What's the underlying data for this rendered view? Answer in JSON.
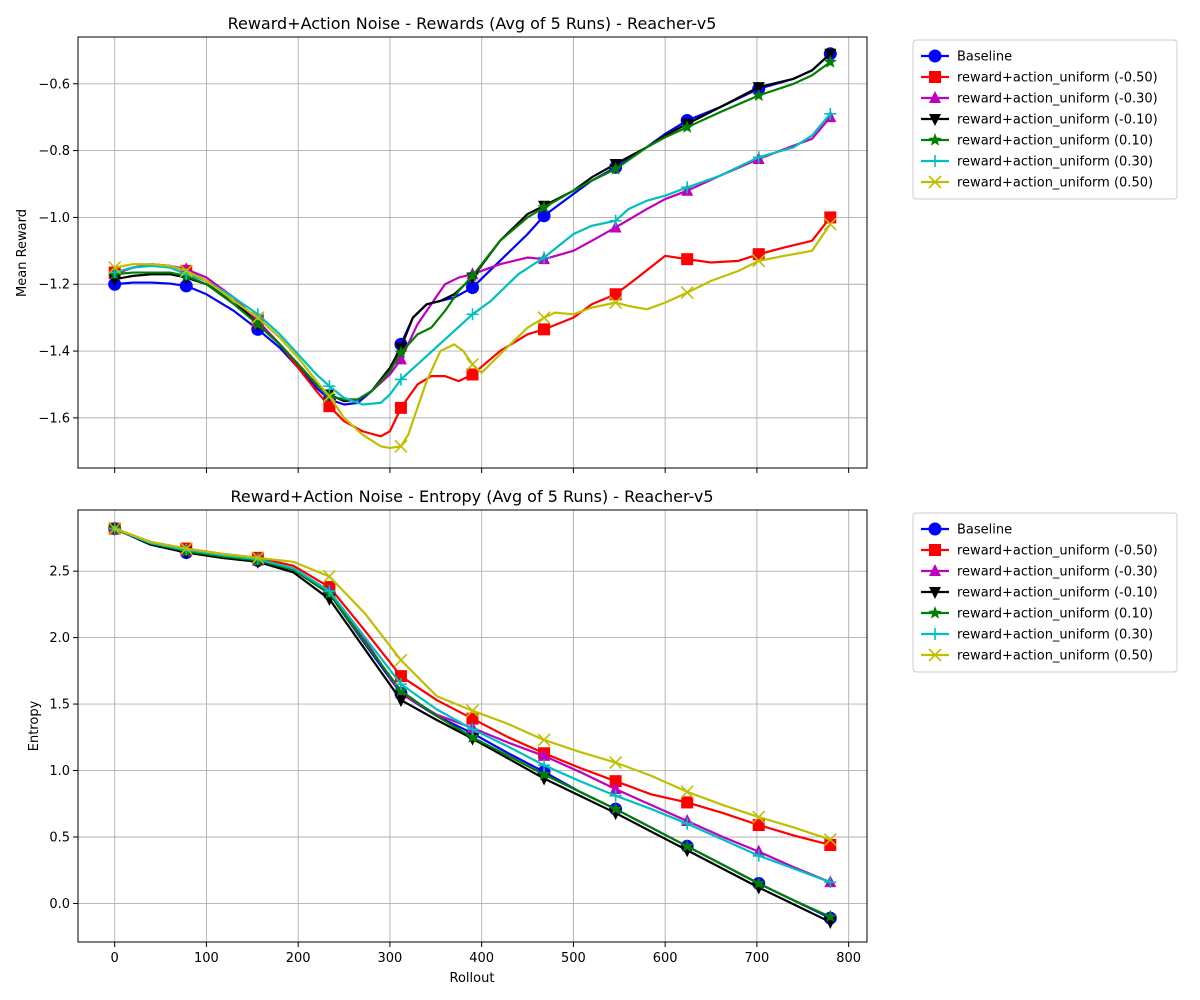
{
  "chart_data": [
    {
      "type": "line",
      "title": "Reward+Action Noise - Rewards (Avg of 5 Runs) - Reacher-v5",
      "xlabel": "",
      "ylabel": "Mean Reward",
      "xlim": [
        -40,
        820
      ],
      "ylim": [
        -1.75,
        -0.46
      ],
      "xticks": [
        0,
        100,
        200,
        300,
        400,
        500,
        600,
        700,
        800
      ],
      "xtick_labels_shown": false,
      "yticks": [
        -1.6,
        -1.4,
        -1.2,
        -1.0,
        -0.8,
        -0.6
      ],
      "ytick_labels": [
        "−1.6",
        "−1.4",
        "−1.2",
        "−1.0",
        "−0.8",
        "−0.6"
      ],
      "grid": true,
      "legend_position": "outside-top-right",
      "series": [
        {
          "name": "Baseline",
          "color": "#0000ff",
          "marker": "circle",
          "x": [
            0,
            20,
            40,
            60,
            78,
            100,
            130,
            156,
            180,
            200,
            220,
            234,
            250,
            265,
            280,
            300,
            312,
            325,
            340,
            355,
            370,
            390,
            420,
            450,
            468,
            500,
            520,
            546,
            580,
            600,
            624,
            660,
            702,
            740,
            760,
            780
          ],
          "y": [
            -1.2,
            -1.195,
            -1.195,
            -1.198,
            -1.205,
            -1.23,
            -1.28,
            -1.335,
            -1.39,
            -1.45,
            -1.51,
            -1.545,
            -1.56,
            -1.555,
            -1.52,
            -1.46,
            -1.38,
            -1.3,
            -1.26,
            -1.25,
            -1.24,
            -1.21,
            -1.13,
            -1.05,
            -0.995,
            -0.93,
            -0.89,
            -0.85,
            -0.79,
            -0.75,
            -0.71,
            -0.67,
            -0.615,
            -0.585,
            -0.56,
            -0.51
          ]
        },
        {
          "name": "reward+action_uniform (-0.50)",
          "color": "#ff0000",
          "marker": "square",
          "x": [
            0,
            20,
            40,
            60,
            78,
            100,
            130,
            156,
            180,
            200,
            220,
            234,
            250,
            270,
            290,
            300,
            312,
            330,
            345,
            360,
            375,
            390,
            420,
            450,
            468,
            500,
            520,
            546,
            570,
            600,
            624,
            650,
            680,
            702,
            730,
            760,
            780
          ],
          "y": [
            -1.165,
            -1.15,
            -1.14,
            -1.145,
            -1.16,
            -1.19,
            -1.25,
            -1.31,
            -1.38,
            -1.45,
            -1.52,
            -1.565,
            -1.61,
            -1.64,
            -1.655,
            -1.64,
            -1.57,
            -1.5,
            -1.475,
            -1.475,
            -1.49,
            -1.47,
            -1.4,
            -1.35,
            -1.335,
            -1.3,
            -1.26,
            -1.23,
            -1.18,
            -1.115,
            -1.125,
            -1.135,
            -1.13,
            -1.11,
            -1.09,
            -1.07,
            -1.0
          ]
        },
        {
          "name": "reward+action_uniform (-0.30)",
          "color": "#bf00bf",
          "marker": "triangle-up",
          "x": [
            0,
            20,
            40,
            60,
            78,
            100,
            130,
            156,
            180,
            200,
            220,
            234,
            250,
            265,
            280,
            300,
            312,
            330,
            345,
            360,
            375,
            390,
            420,
            450,
            468,
            500,
            520,
            546,
            580,
            600,
            624,
            660,
            702,
            740,
            760,
            780
          ],
          "y": [
            -1.17,
            -1.15,
            -1.14,
            -1.145,
            -1.155,
            -1.18,
            -1.24,
            -1.31,
            -1.38,
            -1.44,
            -1.5,
            -1.535,
            -1.545,
            -1.545,
            -1.52,
            -1.47,
            -1.425,
            -1.32,
            -1.26,
            -1.2,
            -1.18,
            -1.17,
            -1.14,
            -1.12,
            -1.125,
            -1.1,
            -1.07,
            -1.03,
            -0.975,
            -0.945,
            -0.92,
            -0.875,
            -0.825,
            -0.785,
            -0.765,
            -0.7
          ]
        },
        {
          "name": "reward+action_uniform (-0.10)",
          "color": "#000000",
          "marker": "triangle-down",
          "x": [
            0,
            20,
            40,
            60,
            78,
            100,
            130,
            156,
            180,
            200,
            220,
            234,
            250,
            265,
            280,
            300,
            312,
            325,
            340,
            355,
            370,
            390,
            420,
            450,
            468,
            500,
            520,
            546,
            580,
            600,
            624,
            660,
            702,
            740,
            760,
            780
          ],
          "y": [
            -1.185,
            -1.175,
            -1.17,
            -1.17,
            -1.18,
            -1.2,
            -1.25,
            -1.32,
            -1.38,
            -1.44,
            -1.5,
            -1.53,
            -1.55,
            -1.545,
            -1.52,
            -1.45,
            -1.39,
            -1.3,
            -1.26,
            -1.25,
            -1.23,
            -1.18,
            -1.07,
            -0.99,
            -0.965,
            -0.92,
            -0.88,
            -0.84,
            -0.79,
            -0.755,
            -0.72,
            -0.67,
            -0.61,
            -0.585,
            -0.56,
            -0.51
          ]
        },
        {
          "name": "reward+action_uniform (0.10)",
          "color": "#008000",
          "marker": "star",
          "x": [
            0,
            20,
            40,
            60,
            78,
            100,
            130,
            156,
            180,
            200,
            220,
            234,
            250,
            265,
            280,
            300,
            312,
            330,
            345,
            360,
            375,
            390,
            420,
            450,
            468,
            500,
            520,
            546,
            580,
            600,
            624,
            660,
            702,
            740,
            760,
            780
          ],
          "y": [
            -1.17,
            -1.165,
            -1.165,
            -1.165,
            -1.175,
            -1.2,
            -1.26,
            -1.32,
            -1.38,
            -1.44,
            -1.5,
            -1.535,
            -1.545,
            -1.545,
            -1.52,
            -1.46,
            -1.405,
            -1.35,
            -1.33,
            -1.28,
            -1.22,
            -1.175,
            -1.07,
            -1.0,
            -0.97,
            -0.92,
            -0.89,
            -0.855,
            -0.79,
            -0.76,
            -0.73,
            -0.685,
            -0.635,
            -0.6,
            -0.575,
            -0.535
          ]
        },
        {
          "name": "reward+action_uniform (0.30)",
          "color": "#00bfbf",
          "marker": "plus",
          "x": [
            0,
            20,
            40,
            60,
            78,
            100,
            130,
            156,
            180,
            200,
            220,
            234,
            250,
            270,
            290,
            300,
            312,
            330,
            350,
            370,
            390,
            410,
            440,
            468,
            500,
            520,
            546,
            560,
            580,
            600,
            624,
            660,
            702,
            740,
            760,
            780
          ],
          "y": [
            -1.165,
            -1.15,
            -1.145,
            -1.15,
            -1.17,
            -1.19,
            -1.24,
            -1.29,
            -1.35,
            -1.41,
            -1.47,
            -1.505,
            -1.54,
            -1.56,
            -1.555,
            -1.53,
            -1.485,
            -1.44,
            -1.39,
            -1.34,
            -1.29,
            -1.25,
            -1.17,
            -1.12,
            -1.05,
            -1.025,
            -1.01,
            -0.975,
            -0.95,
            -0.935,
            -0.91,
            -0.875,
            -0.82,
            -0.79,
            -0.755,
            -0.69
          ]
        },
        {
          "name": "reward+action_uniform (0.50)",
          "color": "#bfbf00",
          "marker": "x",
          "x": [
            0,
            20,
            40,
            60,
            78,
            100,
            130,
            156,
            180,
            200,
            220,
            234,
            250,
            270,
            290,
            300,
            312,
            320,
            340,
            355,
            370,
            380,
            390,
            400,
            420,
            450,
            468,
            480,
            500,
            520,
            546,
            560,
            580,
            600,
            624,
            650,
            680,
            702,
            730,
            760,
            780
          ],
          "y": [
            -1.15,
            -1.14,
            -1.14,
            -1.145,
            -1.16,
            -1.19,
            -1.25,
            -1.3,
            -1.36,
            -1.42,
            -1.49,
            -1.535,
            -1.6,
            -1.65,
            -1.685,
            -1.69,
            -1.685,
            -1.65,
            -1.49,
            -1.4,
            -1.38,
            -1.4,
            -1.44,
            -1.465,
            -1.41,
            -1.33,
            -1.3,
            -1.285,
            -1.29,
            -1.27,
            -1.255,
            -1.265,
            -1.275,
            -1.255,
            -1.225,
            -1.19,
            -1.16,
            -1.13,
            -1.115,
            -1.1,
            -1.02
          ]
        }
      ]
    },
    {
      "type": "line",
      "title": "Reward+Action Noise - Entropy (Avg of 5 Runs) - Reacher-v5",
      "xlabel": "Rollout",
      "ylabel": "Entropy",
      "xlim": [
        -40,
        820
      ],
      "ylim": [
        -0.29,
        2.96
      ],
      "xticks": [
        0,
        100,
        200,
        300,
        400,
        500,
        600,
        700,
        800
      ],
      "xtick_labels": [
        "0",
        "100",
        "200",
        "300",
        "400",
        "500",
        "600",
        "700",
        "800"
      ],
      "yticks": [
        0.0,
        0.5,
        1.0,
        1.5,
        2.0,
        2.5
      ],
      "ytick_labels": [
        "0.0",
        "0.5",
        "1.0",
        "1.5",
        "2.0",
        "2.5"
      ],
      "grid": true,
      "legend_position": "outside-top-right",
      "series": [
        {
          "name": "Baseline",
          "color": "#0000ff",
          "marker": "circle",
          "x": [
            0,
            39,
            78,
            117,
            156,
            195,
            234,
            273,
            312,
            351,
            390,
            429,
            468,
            507,
            546,
            585,
            624,
            663,
            702,
            741,
            780
          ],
          "y": [
            2.82,
            2.7,
            2.64,
            2.61,
            2.58,
            2.51,
            2.33,
            1.95,
            1.58,
            1.41,
            1.28,
            1.13,
            0.99,
            0.84,
            0.71,
            0.57,
            0.43,
            0.29,
            0.15,
            0.02,
            -0.11
          ]
        },
        {
          "name": "reward+action_uniform (-0.50)",
          "color": "#ff0000",
          "marker": "square",
          "x": [
            0,
            39,
            78,
            117,
            156,
            195,
            234,
            273,
            312,
            351,
            390,
            429,
            468,
            507,
            546,
            585,
            624,
            663,
            702,
            741,
            780
          ],
          "y": [
            2.82,
            2.72,
            2.67,
            2.63,
            2.6,
            2.54,
            2.38,
            2.05,
            1.71,
            1.53,
            1.39,
            1.25,
            1.13,
            1.02,
            0.92,
            0.82,
            0.76,
            0.68,
            0.59,
            0.51,
            0.44
          ]
        },
        {
          "name": "reward+action_uniform (-0.30)",
          "color": "#bf00bf",
          "marker": "triangle-up",
          "x": [
            0,
            39,
            78,
            117,
            156,
            195,
            234,
            273,
            312,
            351,
            390,
            429,
            468,
            507,
            546,
            585,
            624,
            663,
            702,
            741,
            780
          ],
          "y": [
            2.82,
            2.71,
            2.65,
            2.61,
            2.58,
            2.52,
            2.35,
            1.98,
            1.58,
            1.42,
            1.32,
            1.21,
            1.11,
            0.99,
            0.86,
            0.74,
            0.62,
            0.5,
            0.39,
            0.27,
            0.16
          ]
        },
        {
          "name": "reward+action_uniform (-0.10)",
          "color": "#000000",
          "marker": "triangle-down",
          "x": [
            0,
            39,
            78,
            117,
            156,
            195,
            234,
            273,
            312,
            351,
            390,
            429,
            468,
            507,
            546,
            585,
            624,
            663,
            702,
            741,
            780
          ],
          "y": [
            2.82,
            2.7,
            2.64,
            2.6,
            2.57,
            2.49,
            2.29,
            1.91,
            1.53,
            1.38,
            1.24,
            1.09,
            0.94,
            0.81,
            0.68,
            0.54,
            0.4,
            0.26,
            0.12,
            -0.01,
            -0.14
          ]
        },
        {
          "name": "reward+action_uniform (0.10)",
          "color": "#008000",
          "marker": "star",
          "x": [
            0,
            39,
            78,
            117,
            156,
            195,
            234,
            273,
            312,
            351,
            390,
            429,
            468,
            507,
            546,
            585,
            624,
            663,
            702,
            741,
            780
          ],
          "y": [
            2.82,
            2.71,
            2.65,
            2.61,
            2.58,
            2.51,
            2.33,
            1.96,
            1.6,
            1.41,
            1.25,
            1.11,
            0.97,
            0.84,
            0.71,
            0.57,
            0.43,
            0.29,
            0.15,
            0.02,
            -0.1
          ]
        },
        {
          "name": "reward+action_uniform (0.30)",
          "color": "#00bfbf",
          "marker": "plus",
          "x": [
            0,
            39,
            78,
            117,
            156,
            195,
            234,
            273,
            312,
            351,
            390,
            429,
            468,
            507,
            546,
            585,
            624,
            663,
            702,
            741,
            780
          ],
          "y": [
            2.82,
            2.71,
            2.66,
            2.62,
            2.59,
            2.52,
            2.35,
            2.0,
            1.65,
            1.46,
            1.31,
            1.18,
            1.04,
            0.92,
            0.81,
            0.71,
            0.6,
            0.48,
            0.36,
            0.26,
            0.16
          ]
        },
        {
          "name": "reward+action_uniform (0.50)",
          "color": "#bfbf00",
          "marker": "x",
          "x": [
            0,
            39,
            78,
            117,
            156,
            195,
            234,
            273,
            312,
            351,
            390,
            429,
            468,
            507,
            546,
            585,
            624,
            663,
            702,
            741,
            780
          ],
          "y": [
            2.82,
            2.72,
            2.67,
            2.63,
            2.6,
            2.57,
            2.46,
            2.18,
            1.83,
            1.56,
            1.45,
            1.35,
            1.23,
            1.14,
            1.06,
            0.96,
            0.84,
            0.74,
            0.65,
            0.57,
            0.48
          ]
        }
      ]
    }
  ]
}
